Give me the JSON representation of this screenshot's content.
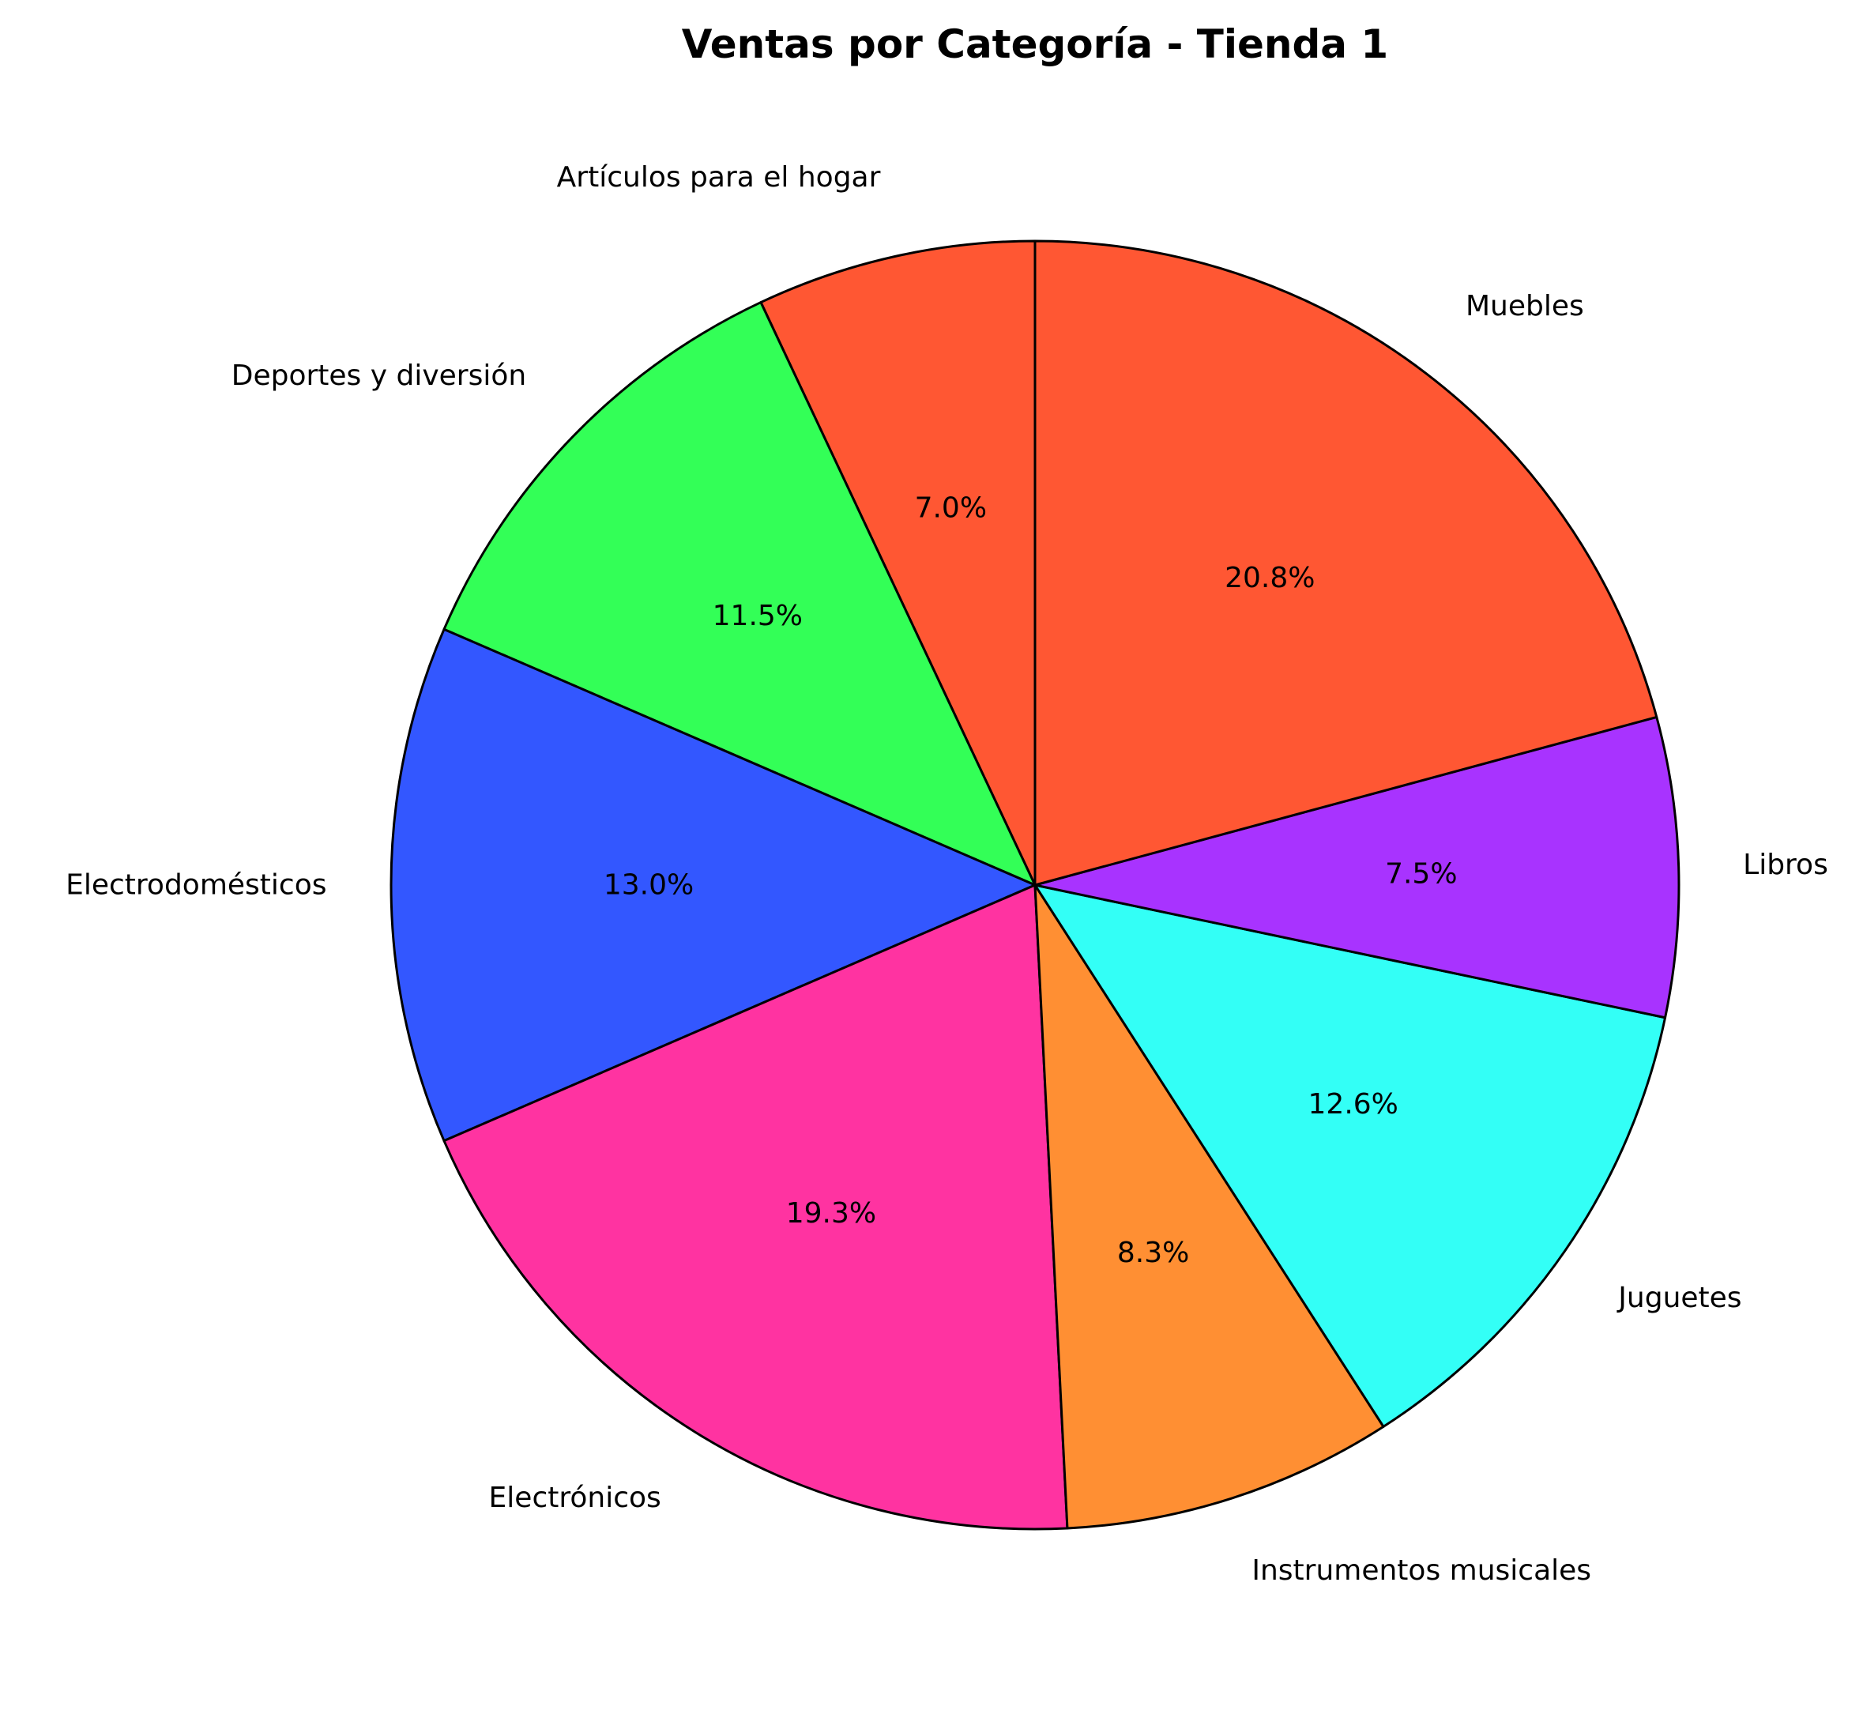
{
  "chart_data": {
    "type": "pie",
    "title": "Ventas por Categoría - Tienda 1",
    "start_angle_deg": 90,
    "direction": "counterclockwise",
    "slices": [
      {
        "label": "Artículos para el hogar",
        "value": 7.0,
        "pct_label": "7.0%",
        "color": "#FF5733"
      },
      {
        "label": "Deportes y diversión",
        "value": 11.5,
        "pct_label": "11.5%",
        "color": "#33FF57"
      },
      {
        "label": "Electrodomésticos",
        "value": 13.0,
        "pct_label": "13.0%",
        "color": "#3357FF"
      },
      {
        "label": "Electrónicos",
        "value": 19.3,
        "pct_label": "19.3%",
        "color": "#FF33A1"
      },
      {
        "label": "Instrumentos musicales",
        "value": 8.3,
        "pct_label": "8.3%",
        "color": "#FF8F33"
      },
      {
        "label": "Juguetes",
        "value": 12.6,
        "pct_label": "12.6%",
        "color": "#33FFF6"
      },
      {
        "label": "Libros",
        "value": 7.5,
        "pct_label": "7.5%",
        "color": "#A833FF"
      },
      {
        "label": "Muebles",
        "value": 20.8,
        "pct_label": "20.8%",
        "color": "#FF5733"
      }
    ]
  }
}
